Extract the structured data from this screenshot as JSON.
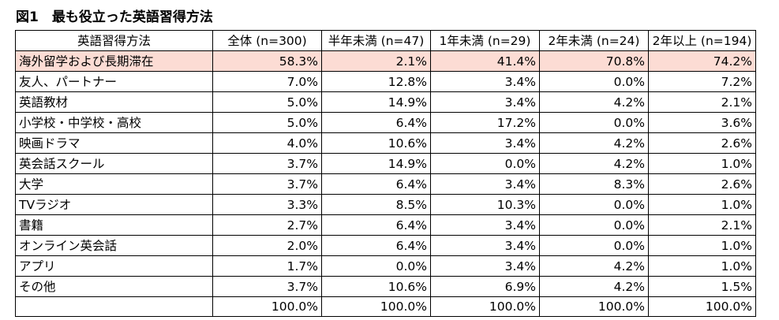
{
  "title": "図1　最も役立った英語習得方法",
  "table": {
    "headers": [
      "英語習得方法",
      "全体 (n=300)",
      "半年未満 (n=47)",
      "1年未満 (n=29)",
      "2年未満 (n=24)",
      "2年以上 (n=194)"
    ],
    "rows": [
      {
        "label": "海外留学および長期滞在",
        "values": [
          "58.3%",
          "2.1%",
          "41.4%",
          "70.8%",
          "74.2%"
        ]
      },
      {
        "label": "友人、パートナー",
        "values": [
          "7.0%",
          "12.8%",
          "3.4%",
          "0.0%",
          "7.2%"
        ]
      },
      {
        "label": "英語教材",
        "values": [
          "5.0%",
          "14.9%",
          "3.4%",
          "4.2%",
          "2.1%"
        ]
      },
      {
        "label": "小学校・中学校・高校",
        "values": [
          "5.0%",
          "6.4%",
          "17.2%",
          "0.0%",
          "3.6%"
        ]
      },
      {
        "label": "映画ドラマ",
        "values": [
          "4.0%",
          "10.6%",
          "3.4%",
          "4.2%",
          "2.6%"
        ]
      },
      {
        "label": "英会話スクール",
        "values": [
          "3.7%",
          "14.9%",
          "0.0%",
          "4.2%",
          "1.0%"
        ]
      },
      {
        "label": "大学",
        "values": [
          "3.7%",
          "6.4%",
          "3.4%",
          "8.3%",
          "2.6%"
        ]
      },
      {
        "label": "TVラジオ",
        "values": [
          "3.3%",
          "8.5%",
          "10.3%",
          "0.0%",
          "1.0%"
        ]
      },
      {
        "label": "書籍",
        "values": [
          "2.7%",
          "6.4%",
          "3.4%",
          "0.0%",
          "2.1%"
        ]
      },
      {
        "label": "オンライン英会話",
        "values": [
          "2.0%",
          "6.4%",
          "3.4%",
          "0.0%",
          "1.0%"
        ]
      },
      {
        "label": "アプリ",
        "values": [
          "1.7%",
          "0.0%",
          "3.4%",
          "4.2%",
          "1.0%"
        ]
      },
      {
        "label": "その他",
        "values": [
          "3.7%",
          "10.6%",
          "6.9%",
          "4.2%",
          "1.5%"
        ]
      }
    ],
    "totals": [
      "100.0%",
      "100.0%",
      "100.0%",
      "100.0%",
      "100.0%"
    ]
  },
  "colors": {
    "highlight_row": "#fcdcd4",
    "border": "#000000"
  }
}
